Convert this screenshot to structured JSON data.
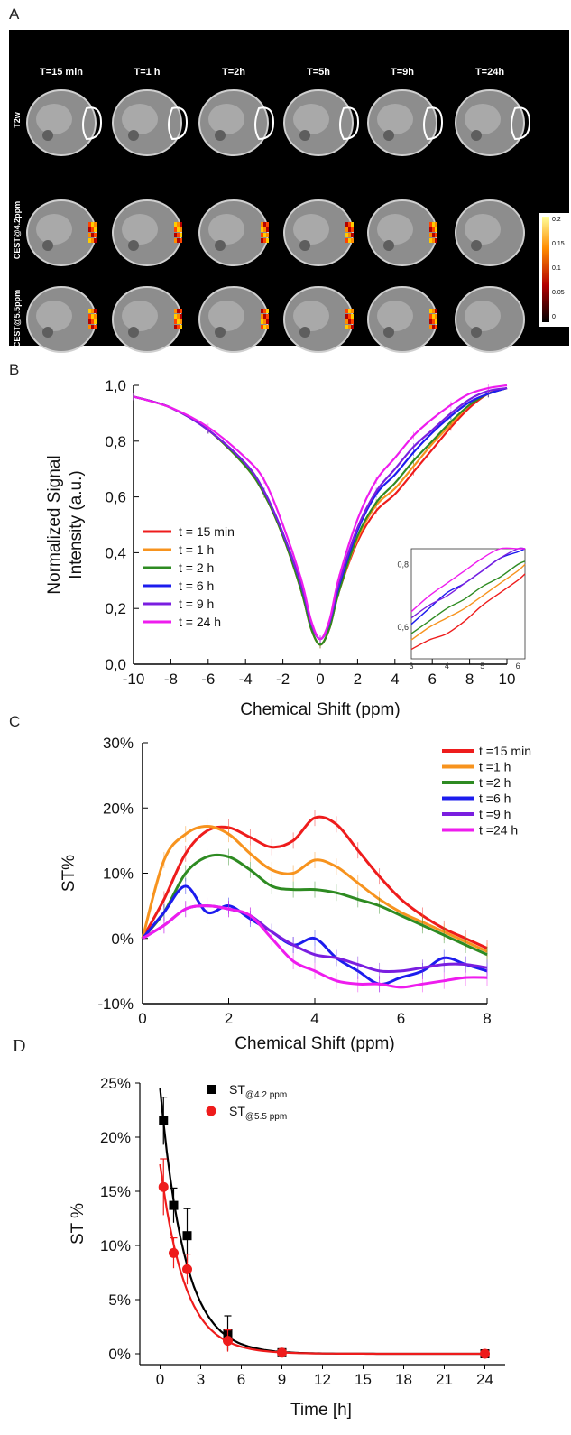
{
  "panel_labels": {
    "a": "A",
    "b": "B",
    "c": "C",
    "d": "D"
  },
  "panel_a": {
    "column_headers": [
      "T=15 min",
      "T=1 h",
      "T=2h",
      "T=5h",
      "T=9h",
      "T=24h"
    ],
    "row_labels": [
      "T2w",
      "CEST@4.2ppm",
      "CEST@5.5ppm"
    ],
    "colorbar_ticks": [
      "0.2",
      "0.15",
      "0.1",
      "0.05",
      "0"
    ]
  },
  "chart_data": [
    {
      "type": "line",
      "xlabel": "Chemical Shift (ppm)",
      "ylabel": "Normalized Signal Intensity (a.u.)",
      "xlim": [
        -10,
        10
      ],
      "ylim": [
        0,
        1
      ],
      "xticks": [
        "-10",
        "-8",
        "-6",
        "-4",
        "-2",
        "0",
        "2",
        "4",
        "6",
        "8",
        "10"
      ],
      "yticks": [
        "0,0",
        "0,2",
        "0,4",
        "0,6",
        "0,8",
        "1,0"
      ],
      "legend_position": "left",
      "x": [
        -10,
        -8,
        -6,
        -4,
        -3,
        -2,
        -1,
        -0.5,
        0,
        0.5,
        1,
        2,
        3,
        4,
        5,
        6,
        7,
        8,
        9,
        10
      ],
      "series": [
        {
          "name": "t = 15 min",
          "color": "#ee1c1c",
          "values": [
            0.96,
            0.92,
            0.84,
            0.71,
            0.61,
            0.46,
            0.26,
            0.13,
            0.07,
            0.13,
            0.26,
            0.44,
            0.55,
            0.61,
            0.69,
            0.77,
            0.85,
            0.92,
            0.97,
            0.99
          ]
        },
        {
          "name": "t = 1 h",
          "color": "#f7931e",
          "values": [
            0.96,
            0.92,
            0.84,
            0.71,
            0.61,
            0.46,
            0.26,
            0.13,
            0.07,
            0.13,
            0.26,
            0.45,
            0.57,
            0.63,
            0.71,
            0.79,
            0.86,
            0.93,
            0.97,
            0.99
          ]
        },
        {
          "name": "t = 2 h",
          "color": "#2e8b22",
          "values": [
            0.96,
            0.92,
            0.84,
            0.71,
            0.61,
            0.46,
            0.26,
            0.13,
            0.07,
            0.13,
            0.26,
            0.46,
            0.58,
            0.65,
            0.73,
            0.8,
            0.87,
            0.93,
            0.97,
            0.99
          ]
        },
        {
          "name": "t = 6 h",
          "color": "#1c1cee",
          "values": [
            0.96,
            0.92,
            0.84,
            0.72,
            0.62,
            0.47,
            0.28,
            0.15,
            0.09,
            0.15,
            0.28,
            0.48,
            0.61,
            0.68,
            0.76,
            0.83,
            0.89,
            0.94,
            0.97,
            0.99
          ]
        },
        {
          "name": "t = 9 h",
          "color": "#7a1ee0",
          "values": [
            0.96,
            0.92,
            0.84,
            0.72,
            0.62,
            0.47,
            0.28,
            0.15,
            0.09,
            0.15,
            0.29,
            0.49,
            0.62,
            0.7,
            0.78,
            0.84,
            0.9,
            0.95,
            0.98,
            0.99
          ]
        },
        {
          "name": "t = 24 h",
          "color": "#ee1cee",
          "values": [
            0.96,
            0.92,
            0.85,
            0.74,
            0.66,
            0.5,
            0.3,
            0.16,
            0.09,
            0.16,
            0.31,
            0.52,
            0.66,
            0.74,
            0.82,
            0.88,
            0.93,
            0.97,
            0.99,
            1.0
          ]
        }
      ],
      "inset": {
        "xlim": [
          3,
          6.2
        ],
        "ylim": [
          0.5,
          0.85
        ],
        "xticks": [
          "3",
          "4",
          "5",
          "6"
        ],
        "yticks": [
          "0,6",
          "0,8"
        ],
        "x": [
          3,
          3.5,
          4,
          4.5,
          5,
          5.5,
          6,
          6.2
        ],
        "series": [
          {
            "color": "#ee1c1c",
            "values": [
              0.53,
              0.56,
              0.58,
              0.62,
              0.67,
              0.71,
              0.75,
              0.77
            ]
          },
          {
            "color": "#f7931e",
            "values": [
              0.56,
              0.6,
              0.63,
              0.66,
              0.7,
              0.74,
              0.78,
              0.8
            ]
          },
          {
            "color": "#2e8b22",
            "values": [
              0.58,
              0.62,
              0.66,
              0.69,
              0.73,
              0.76,
              0.8,
              0.81
            ]
          },
          {
            "color": "#1c1cee",
            "values": [
              0.61,
              0.66,
              0.71,
              0.74,
              0.78,
              0.82,
              0.84,
              0.85
            ]
          },
          {
            "color": "#7a1ee0",
            "values": [
              0.63,
              0.67,
              0.7,
              0.74,
              0.78,
              0.82,
              0.85,
              0.85
            ]
          },
          {
            "color": "#ee1cee",
            "values": [
              0.65,
              0.7,
              0.74,
              0.78,
              0.82,
              0.85,
              0.85,
              0.85
            ]
          }
        ]
      }
    },
    {
      "type": "line",
      "xlabel": "Chemical Shift (ppm)",
      "ylabel": "ST%",
      "xlim": [
        0,
        8
      ],
      "ylim": [
        -10,
        30
      ],
      "xticks": [
        "0",
        "2",
        "4",
        "6",
        "8"
      ],
      "yticks": [
        "-10%",
        "0%",
        "10%",
        "20%",
        "30%"
      ],
      "legend_position": "top-right",
      "x": [
        0,
        0.5,
        1,
        1.5,
        2,
        2.5,
        3,
        3.5,
        4,
        4.5,
        5,
        5.5,
        6,
        6.5,
        7,
        7.5,
        8
      ],
      "series": [
        {
          "name": "t =15 min",
          "color": "#ee1c1c",
          "values": [
            0,
            6,
            13,
            16.5,
            17,
            15.5,
            14,
            15,
            18.5,
            17.5,
            13.5,
            9.5,
            6,
            3.5,
            1.5,
            0,
            -1.5
          ]
        },
        {
          "name": "t =1 h",
          "color": "#f7931e",
          "values": [
            0,
            12,
            16,
            17.2,
            16,
            13,
            10.5,
            10,
            12,
            11,
            8.5,
            6,
            4,
            2.5,
            1,
            -0.5,
            -2
          ]
        },
        {
          "name": "t =2 h",
          "color": "#2e8b22",
          "values": [
            0,
            4,
            10,
            12.5,
            12.5,
            10.5,
            8,
            7.5,
            7.5,
            7,
            6,
            5,
            3.5,
            2,
            0.5,
            -1,
            -2.5
          ]
        },
        {
          "name": "t =6 h",
          "color": "#1c1cee",
          "values": [
            0,
            4,
            8,
            4,
            5,
            3,
            1,
            -1,
            0,
            -3,
            -5,
            -7,
            -6,
            -5,
            -3,
            -4,
            -5
          ]
        },
        {
          "name": "t =9 h",
          "color": "#7a1ee0",
          "values": [
            0,
            2,
            4.5,
            5,
            4.5,
            3.5,
            1,
            -1,
            -2.5,
            -3,
            -4,
            -5,
            -5,
            -4.5,
            -4,
            -4,
            -4.5
          ]
        },
        {
          "name": "t =24 h",
          "color": "#ee1cee",
          "values": [
            0,
            2,
            4.5,
            5,
            4.5,
            3.5,
            0,
            -3.5,
            -5,
            -6.5,
            -7,
            -7,
            -7.5,
            -7,
            -6.5,
            -6,
            -6
          ]
        }
      ]
    },
    {
      "type": "scatter",
      "xlabel": "Time [h]",
      "ylabel": "ST %",
      "xlim": [
        -1.5,
        25.5
      ],
      "ylim": [
        -1,
        25
      ],
      "xticks": [
        "0",
        "3",
        "6",
        "9",
        "12",
        "15",
        "18",
        "21",
        "24"
      ],
      "yticks": [
        "0%",
        "5%",
        "10%",
        "15%",
        "20%",
        "25%"
      ],
      "legend_position": "top",
      "series": [
        {
          "name": "ST",
          "subscript": "@4.2 ppm",
          "color": "#000000",
          "marker": "square",
          "x": [
            0.25,
            1,
            2,
            5,
            9,
            24
          ],
          "y": [
            21.5,
            13.7,
            10.9,
            1.9,
            0.1,
            0.0
          ],
          "err": [
            2.2,
            1.6,
            2.5,
            1.6,
            0.3,
            0.2
          ],
          "fit": {
            "a": 24.5,
            "k": 0.55
          }
        },
        {
          "name": "ST",
          "subscript": "@5.5 ppm",
          "color": "#ee1c1c",
          "marker": "circle",
          "x": [
            0.25,
            1,
            2,
            5,
            9,
            24
          ],
          "y": [
            15.4,
            9.3,
            7.8,
            1.2,
            0.1,
            0.0
          ],
          "err": [
            2.6,
            1.4,
            1.4,
            1.0,
            0.3,
            0.2
          ],
          "fit": {
            "a": 17.5,
            "k": 0.55
          }
        }
      ]
    }
  ]
}
